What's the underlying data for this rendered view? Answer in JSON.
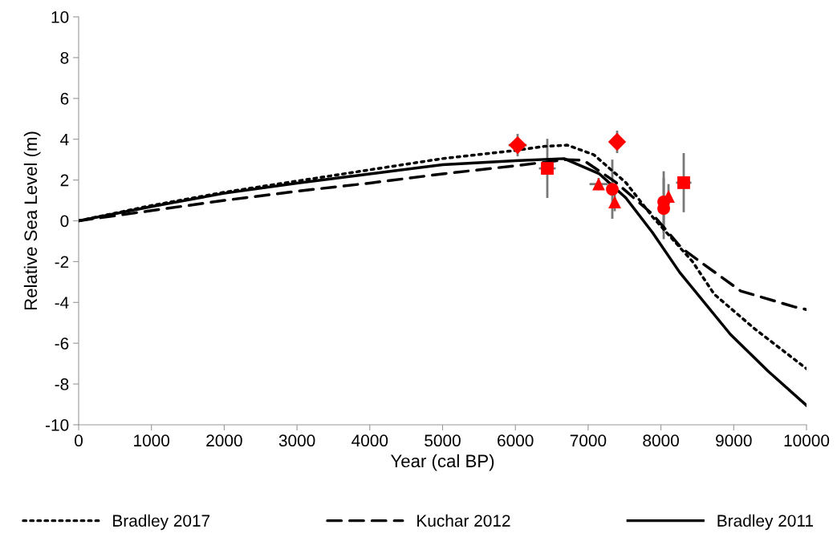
{
  "chart_data": {
    "type": "line",
    "xlabel": "Year (cal BP)",
    "ylabel": "Relative Sea Level (m)",
    "xlim": [
      0,
      10000
    ],
    "ylim": [
      -10,
      10
    ],
    "xticks": [
      0,
      1000,
      2000,
      3000,
      4000,
      5000,
      6000,
      7000,
      8000,
      9000,
      10000
    ],
    "yticks": [
      -10,
      -8,
      -6,
      -4,
      -2,
      0,
      2,
      4,
      6,
      8,
      10
    ],
    "grid": false,
    "legend": "bottom",
    "series": [
      {
        "name": "Bradley 2017",
        "color": "#000000",
        "line_style": "dotted",
        "x": [
          0,
          1000,
          2000,
          3000,
          4000,
          5000,
          6000,
          6400,
          6714,
          7078,
          7519,
          7883,
          8434,
          8732,
          9283,
          10000
        ],
        "values": [
          0,
          0.75,
          1.4,
          1.95,
          2.5,
          3.05,
          3.45,
          3.65,
          3.71,
          3.24,
          1.87,
          0.2,
          -2.0,
          -3.6,
          -5.28,
          -7.25
        ]
      },
      {
        "name": "Kuchar 2012",
        "color": "#000000",
        "line_style": "dashed",
        "x": [
          0,
          1000,
          2000,
          3000,
          4000,
          5000,
          6000,
          6700,
          6935,
          7376,
          7883,
          8291,
          8545,
          9096,
          9835,
          10000
        ],
        "values": [
          0,
          0.5,
          1.0,
          1.45,
          1.85,
          2.3,
          2.7,
          3.0,
          2.97,
          1.9,
          0.33,
          -1.36,
          -2.02,
          -3.44,
          -4.22,
          -4.35
        ]
      },
      {
        "name": "Bradley 2011",
        "color": "#000000",
        "line_style": "solid",
        "x": [
          0,
          1000,
          2000,
          3000,
          4000,
          5000,
          6000,
          6670,
          7155,
          7519,
          7883,
          8258,
          8953,
          9471,
          10000
        ],
        "values": [
          0,
          0.7,
          1.35,
          1.85,
          2.3,
          2.75,
          2.95,
          3.05,
          2.3,
          1.12,
          -0.57,
          -2.53,
          -5.56,
          -7.37,
          -9.05
        ]
      },
      {
        "type": "scatter",
        "marker": "diamond",
        "color": "#ff0000",
        "x": [
          6031,
          7398
        ],
        "values": [
          3.71,
          3.87
        ],
        "errors": [
          0.55,
          0.55
        ],
        "xerrors": [
          125,
          null
        ]
      },
      {
        "type": "scatter",
        "marker": "square",
        "color": "#ff0000",
        "x": [
          6439,
          8313
        ],
        "values": [
          2.57,
          1.87
        ],
        "errors": [
          1.45,
          1.45
        ],
        "xerrors": [
          115,
          105
        ]
      },
      {
        "type": "scatter",
        "marker": "triangle",
        "color": "#ff0000",
        "x": [
          7144,
          7365,
          8104
        ],
        "values": [
          1.8,
          0.92,
          1.2
        ],
        "errors": [
          0.3,
          0.45,
          0.6
        ],
        "xerrors": [
          125,
          null,
          null
        ]
      },
      {
        "type": "scatter",
        "marker": "circle",
        "color": "#ff0000",
        "x": [
          7332,
          8038,
          8038
        ],
        "values": [
          1.55,
          0.93,
          0.6
        ],
        "errors": [
          1.45,
          1.5,
          1.5
        ],
        "xerrors": [
          null,
          null,
          null
        ]
      }
    ]
  }
}
